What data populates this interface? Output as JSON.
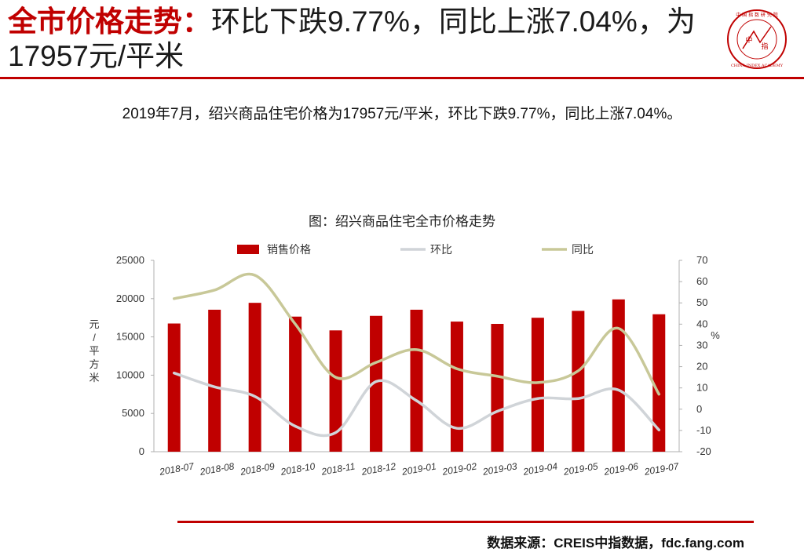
{
  "header": {
    "title_highlight": "全市价格走势：",
    "title_rest": "环比下跌9.77%，同比上涨7.04%，为17957元/平米",
    "logo": {
      "icon": "china-index-academy-seal",
      "top_text": "中 国 指 数 研 究 院",
      "center_text_1": "中",
      "center_text_2": "指",
      "bottom_text": "CHINA INDEX ACADEMY"
    }
  },
  "summary": "2019年7月，绍兴商品住宅价格为17957元/平米，环比下跌9.77%，同比上涨7.04%。",
  "source": "数据来源：CREIS中指数据，fdc.fang.com",
  "colors": {
    "accent": "#c00000",
    "bar": "#c00000",
    "mom_line": "#d0d4d8",
    "yoy_line": "#c8c898"
  },
  "chart_data": {
    "type": "bar",
    "title": "图：绍兴商品住宅全市价格走势",
    "categories": [
      "2018-07",
      "2018-08",
      "2018-09",
      "2018-10",
      "2018-11",
      "2018-12",
      "2019-01",
      "2019-02",
      "2019-03",
      "2019-04",
      "2019-05",
      "2019-06",
      "2019-07"
    ],
    "ylabel": "元/平方米",
    "ylabel_chars": [
      "元",
      "/",
      "平",
      "方",
      "米"
    ],
    "y2label": "%",
    "ylim": [
      0,
      25000
    ],
    "y2lim": [
      -20,
      70
    ],
    "yticks": [
      "0",
      "5000",
      "10000",
      "15000",
      "20000",
      "25000"
    ],
    "y2ticks": [
      "-20",
      "-10",
      "0",
      "10",
      "20",
      "30",
      "40",
      "50",
      "60",
      "70"
    ],
    "legend_position": "top",
    "grid": false,
    "series": [
      {
        "name": "销售价格",
        "kind": "bar",
        "axis": "left",
        "values": [
          16750,
          18550,
          19450,
          17650,
          15850,
          17750,
          18550,
          17000,
          16700,
          17500,
          18400,
          19900,
          17957
        ]
      },
      {
        "name": "环比",
        "kind": "line",
        "axis": "right",
        "values": [
          17,
          10.5,
          6,
          -8,
          -11,
          13,
          4,
          -9,
          -1,
          5,
          5,
          9,
          -9.77
        ]
      },
      {
        "name": "同比",
        "kind": "line",
        "axis": "right",
        "values": [
          52,
          56,
          63,
          40,
          15,
          22,
          28,
          19,
          15.5,
          12.5,
          18,
          38,
          7.04
        ]
      }
    ]
  }
}
